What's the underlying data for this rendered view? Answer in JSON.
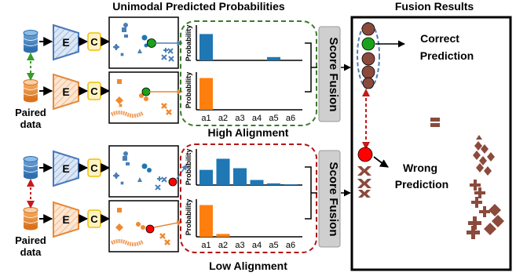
{
  "titles": {
    "unimodal": "Unimodal Predicted Probabilities",
    "fusion": "Fusion Results"
  },
  "labels": {
    "encoder": "E",
    "classifier": "C",
    "paired_data": [
      "Paired",
      "data"
    ],
    "score_fusion": "Score Fusion",
    "high_alignment": "High Alignment",
    "low_alignment": "Low Alignment",
    "correct_prediction": [
      "Correct",
      "Prediction"
    ],
    "wrong_prediction": [
      "Wrong",
      "Prediction"
    ],
    "probability": "Probability"
  },
  "colors": {
    "blue": "#1f77b4",
    "orange": "#ff7f0e",
    "green_dash": "#3a7d28",
    "red_dash": "#b11616",
    "brown": "#8b4a3c",
    "encoder_blue_fill": "#dce7f5",
    "encoder_orange_fill": "#fde6d2",
    "classifier_fill": "#fff3c4",
    "classifier_stroke": "#f0c000",
    "fusion_box": "#cfcfcf",
    "green_point": "#1aa31a",
    "red_point": "#ff0000"
  },
  "chart_data": [
    {
      "type": "bar",
      "name": "high-alignment-modality-1",
      "categories": [
        "a1",
        "a2",
        "a3",
        "a4",
        "a5",
        "a6"
      ],
      "values": [
        0.8,
        0,
        0,
        0,
        0.1,
        0
      ],
      "ylabel": "Probability",
      "color": "blue"
    },
    {
      "type": "bar",
      "name": "high-alignment-modality-2",
      "categories": [
        "a1",
        "a2",
        "a3",
        "a4",
        "a5",
        "a6"
      ],
      "values": [
        0.9,
        0,
        0,
        0,
        0,
        0
      ],
      "ylabel": "Probability",
      "color": "orange"
    },
    {
      "type": "bar",
      "name": "low-alignment-modality-1",
      "categories": [
        "a1",
        "a2",
        "a3",
        "a4",
        "a5",
        "a6"
      ],
      "values": [
        0.45,
        0.78,
        0.5,
        0.15,
        0.05,
        0.02
      ],
      "ylabel": "Probability",
      "color": "blue"
    },
    {
      "type": "bar",
      "name": "low-alignment-modality-2",
      "categories": [
        "a1",
        "a2",
        "a3",
        "a4",
        "a5",
        "a6"
      ],
      "values": [
        0.9,
        0.08,
        0,
        0,
        0,
        0
      ],
      "ylabel": "Probability",
      "color": "orange"
    }
  ]
}
